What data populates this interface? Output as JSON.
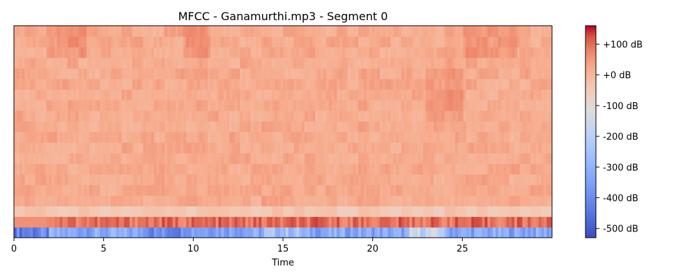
{
  "chart_data": {
    "type": "heatmap",
    "title": "MFCC - Ganamurthi.mp3 - Segment 0",
    "xlabel": "Time",
    "ylabel": "",
    "x_ticks": [
      0,
      5,
      10,
      15,
      20,
      25
    ],
    "xlim": [
      0,
      30
    ],
    "colormap": "coolwarm",
    "colorbar": {
      "ticks": [
        100,
        0,
        -100,
        -200,
        -300,
        -400,
        -500
      ],
      "tick_labels": [
        "+100 dB",
        "+0 dB",
        "-100 dB",
        "-200 dB",
        "-300 dB",
        "-400 dB",
        "-500 dB"
      ],
      "range": [
        -530,
        160
      ]
    },
    "n_coefficients": 20,
    "coefficient_rows": [
      {
        "index": 0,
        "value_range": [
          -500,
          -120
        ],
        "description_approx": "low row, blue"
      },
      {
        "index": 1,
        "value_range": [
          80,
          160
        ]
      },
      {
        "index": 2,
        "value_range": [
          -60,
          -10
        ]
      },
      {
        "index": 3,
        "value_range": [
          0,
          50
        ]
      }
    ]
  },
  "colors": {
    "cool_end": "#3b4cc0",
    "warm_end": "#b40426",
    "midpoint": "#dddddd"
  }
}
